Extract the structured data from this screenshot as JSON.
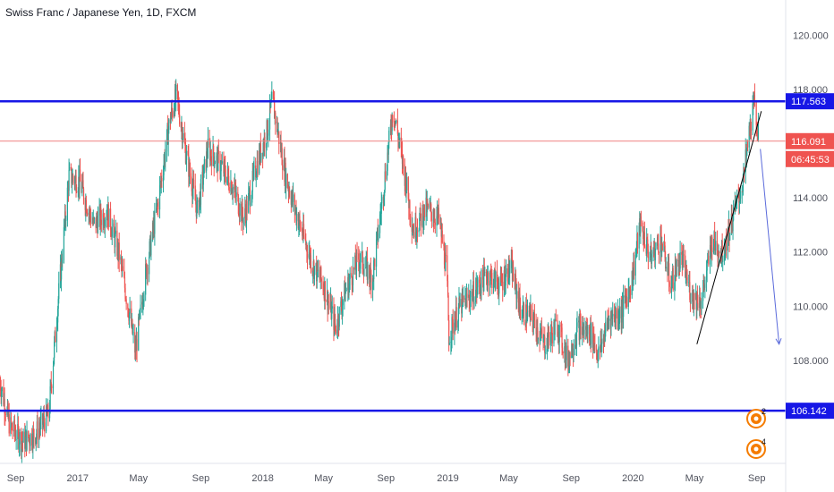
{
  "title": "Swiss Franc / Japanese Yen, 1D, FXCM",
  "colors": {
    "up": "#26a69a",
    "down": "#ef5350",
    "level_line": "#1717e6",
    "price_line": "#f08080",
    "trend_line": "#000000",
    "arrow": "#5b6bdb",
    "axis_text": "#50535e",
    "badge_level": "#1717e6",
    "badge_price": "#ef5350",
    "alert": "#f57c00"
  },
  "chart_data": {
    "type": "candlestick",
    "y_axis": {
      "range": [
        104.2,
        121.3
      ],
      "ticks": [
        "120.000",
        "118.000",
        "116.000",
        "114.000",
        "112.000",
        "110.000",
        "108.000"
      ],
      "tick_values": [
        120,
        118,
        116,
        114,
        112,
        110,
        108
      ]
    },
    "x_axis": {
      "range": [
        "2016-08-01",
        "2020-10-28"
      ],
      "ticks": [
        {
          "label": "Sep",
          "date": "2016-09-01"
        },
        {
          "label": "2017",
          "date": "2017-01-01"
        },
        {
          "label": "May",
          "date": "2017-05-01"
        },
        {
          "label": "Sep",
          "date": "2017-09-01"
        },
        {
          "label": "2018",
          "date": "2018-01-01"
        },
        {
          "label": "May",
          "date": "2018-05-01"
        },
        {
          "label": "Sep",
          "date": "2018-09-01"
        },
        {
          "label": "2019",
          "date": "2019-01-01"
        },
        {
          "label": "May",
          "date": "2019-05-01"
        },
        {
          "label": "Sep",
          "date": "2019-09-01"
        },
        {
          "label": "2020",
          "date": "2020-01-01"
        },
        {
          "label": "May",
          "date": "2020-05-01"
        },
        {
          "label": "Sep",
          "date": "2020-09-01"
        }
      ]
    },
    "price_path": [
      [
        "2016-08-01",
        107.2
      ],
      [
        "2016-08-20",
        105.6
      ],
      [
        "2016-09-15",
        105.0
      ],
      [
        "2016-10-10",
        105.3
      ],
      [
        "2016-11-05",
        106.0
      ],
      [
        "2016-11-25",
        110.5
      ],
      [
        "2016-12-15",
        114.8
      ],
      [
        "2017-01-05",
        114.6
      ],
      [
        "2017-02-01",
        113.0
      ],
      [
        "2017-03-01",
        113.5
      ],
      [
        "2017-03-25",
        111.8
      ],
      [
        "2017-04-15",
        109.5
      ],
      [
        "2017-04-25",
        108.3
      ],
      [
        "2017-05-15",
        111.2
      ],
      [
        "2017-06-10",
        114.0
      ],
      [
        "2017-07-01",
        116.8
      ],
      [
        "2017-07-15",
        117.8
      ],
      [
        "2017-07-30",
        116.0
      ],
      [
        "2017-08-25",
        113.5
      ],
      [
        "2017-09-15",
        115.8
      ],
      [
        "2017-10-10",
        115.2
      ],
      [
        "2017-11-01",
        114.5
      ],
      [
        "2017-11-25",
        113.2
      ],
      [
        "2017-12-20",
        115.2
      ],
      [
        "2018-01-10",
        116.5
      ],
      [
        "2018-01-20",
        117.6
      ],
      [
        "2018-02-15",
        114.8
      ],
      [
        "2018-03-15",
        113.0
      ],
      [
        "2018-04-10",
        111.5
      ],
      [
        "2018-05-01",
        110.8
      ],
      [
        "2018-05-25",
        109.2
      ],
      [
        "2018-06-10",
        110.4
      ],
      [
        "2018-07-10",
        111.8
      ],
      [
        "2018-08-05",
        111.0
      ],
      [
        "2018-08-25",
        114.0
      ],
      [
        "2018-09-15",
        117.3
      ],
      [
        "2018-10-05",
        115.2
      ],
      [
        "2018-10-25",
        112.8
      ],
      [
        "2018-11-20",
        113.6
      ],
      [
        "2018-12-15",
        113.2
      ],
      [
        "2018-12-30",
        111.2
      ],
      [
        "2019-01-03",
        108.9
      ],
      [
        "2019-01-25",
        110.0
      ],
      [
        "2019-02-25",
        110.6
      ],
      [
        "2019-03-20",
        111.2
      ],
      [
        "2019-04-15",
        110.8
      ],
      [
        "2019-05-05",
        111.5
      ],
      [
        "2019-05-25",
        109.8
      ],
      [
        "2019-06-15",
        109.6
      ],
      [
        "2019-07-10",
        108.6
      ],
      [
        "2019-08-05",
        109.3
      ],
      [
        "2019-08-25",
        108.0
      ],
      [
        "2019-09-15",
        109.2
      ],
      [
        "2019-10-10",
        109.0
      ],
      [
        "2019-10-25",
        108.2
      ],
      [
        "2019-11-15",
        109.6
      ],
      [
        "2019-12-10",
        109.8
      ],
      [
        "2019-12-30",
        111.0
      ],
      [
        "2020-01-15",
        113.0
      ],
      [
        "2020-02-05",
        111.8
      ],
      [
        "2020-02-25",
        112.5
      ],
      [
        "2020-03-15",
        110.8
      ],
      [
        "2020-04-05",
        111.8
      ],
      [
        "2020-04-25",
        110.4
      ],
      [
        "2020-05-15",
        110.2
      ],
      [
        "2020-06-05",
        112.4
      ],
      [
        "2020-06-25",
        112.0
      ],
      [
        "2020-07-15",
        113.2
      ],
      [
        "2020-08-05",
        114.6
      ],
      [
        "2020-08-20",
        116.8
      ],
      [
        "2020-08-28",
        117.5
      ],
      [
        "2020-09-05",
        116.1
      ]
    ],
    "levels": [
      {
        "label": "117.563",
        "value": 117.563
      },
      {
        "label": "106.142",
        "value": 106.142
      }
    ],
    "current_price": {
      "label": "116.091",
      "value": 116.091,
      "countdown": "06:45:53"
    },
    "trend_line": {
      "from": [
        "2020-05-06",
        108.6
      ],
      "to": [
        "2020-09-10",
        117.2
      ]
    },
    "projection_arrow": {
      "from": [
        "2020-09-08",
        115.8
      ],
      "to": [
        "2020-10-15",
        108.6
      ]
    },
    "alert_badges": [
      "2",
      "4"
    ]
  }
}
